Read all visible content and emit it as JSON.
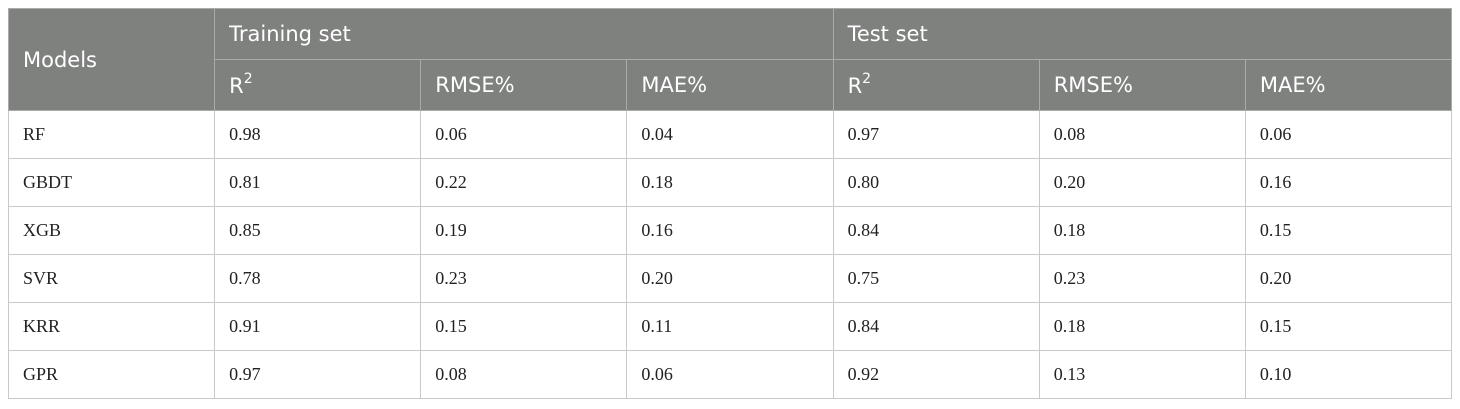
{
  "table": {
    "header": {
      "models": "Models",
      "groups": [
        "Training set",
        "Test set"
      ],
      "columns": [
        {
          "text": "R",
          "sup": "2"
        },
        {
          "text": "RMSE%"
        },
        {
          "text": "MAE%"
        },
        {
          "text": "R",
          "sup": "2"
        },
        {
          "text": "RMSE%"
        },
        {
          "text": "MAE%"
        }
      ]
    },
    "rows": [
      [
        "RF",
        "0.98",
        "0.06",
        "0.04",
        "0.97",
        "0.08",
        "0.06"
      ],
      [
        "GBDT",
        "0.81",
        "0.22",
        "0.18",
        "0.80",
        "0.20",
        "0.16"
      ],
      [
        "XGB",
        "0.85",
        "0.19",
        "0.16",
        "0.84",
        "0.18",
        "0.15"
      ],
      [
        "SVR",
        "0.78",
        "0.23",
        "0.20",
        "0.75",
        "0.23",
        "0.20"
      ],
      [
        "KRR",
        "0.91",
        "0.15",
        "0.11",
        "0.84",
        "0.18",
        "0.15"
      ],
      [
        "GPR",
        "0.97",
        "0.08",
        "0.06",
        "0.92",
        "0.13",
        "0.10"
      ]
    ]
  }
}
